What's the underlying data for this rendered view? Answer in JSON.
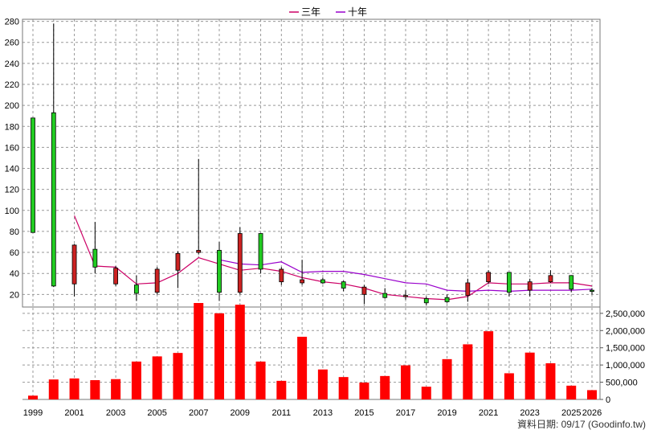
{
  "chart_data": {
    "type": "candlestick-bar",
    "legend": [
      {
        "name": "三年",
        "color": "#cc0066"
      },
      {
        "name": "十年",
        "color": "#9900cc"
      }
    ],
    "years": [
      1999,
      2000,
      2001,
      2002,
      2003,
      2004,
      2005,
      2006,
      2007,
      2008,
      2009,
      2010,
      2011,
      2012,
      2013,
      2014,
      2015,
      2016,
      2017,
      2018,
      2019,
      2020,
      2021,
      2022,
      2023,
      2024,
      2025,
      2026
    ],
    "x_tick_labels": [
      "1999",
      "2001",
      "2003",
      "2005",
      "2007",
      "2009",
      "2011",
      "2013",
      "2015",
      "2017",
      "2019",
      "2021",
      "2023",
      "2025",
      "2026"
    ],
    "price_axis": {
      "min": 8,
      "max": 282,
      "ticks": [
        20,
        40,
        60,
        80,
        100,
        120,
        140,
        160,
        180,
        200,
        220,
        240,
        260,
        280
      ]
    },
    "volume_axis": {
      "min": 0,
      "max": 2800000,
      "ticks": [
        0,
        500000,
        1000000,
        1500000,
        2000000,
        2500000
      ],
      "tick_labels": [
        "0",
        "500,000",
        "1,000,000",
        "1,500,000",
        "2,000,000",
        "2,500,000"
      ]
    },
    "candles": [
      {
        "year": 1999,
        "open": 79,
        "close": 188,
        "high": 188,
        "low": 79
      },
      {
        "year": 2000,
        "open": 28,
        "close": 193,
        "high": 278,
        "low": 27
      },
      {
        "year": 2001,
        "open": 67,
        "close": 30,
        "high": 68,
        "low": 18
      },
      {
        "year": 2002,
        "open": 46,
        "close": 63,
        "high": 89,
        "low": 40
      },
      {
        "year": 2003,
        "open": 45,
        "close": 30,
        "high": 47,
        "low": 28
      },
      {
        "year": 2004,
        "open": 21,
        "close": 29,
        "high": 38,
        "low": 14
      },
      {
        "year": 2005,
        "open": 44,
        "close": 22,
        "high": 46,
        "low": 20
      },
      {
        "year": 2006,
        "open": 59,
        "close": 43,
        "high": 61,
        "low": 26
      },
      {
        "year": 2007,
        "open": 62,
        "close": 60,
        "high": 149,
        "low": 58
      },
      {
        "year": 2008,
        "open": 22,
        "close": 62,
        "high": 70,
        "low": 14
      },
      {
        "year": 2009,
        "open": 78,
        "close": 22,
        "high": 84,
        "low": 20
      },
      {
        "year": 2010,
        "open": 44,
        "close": 78,
        "high": 78,
        "low": 40
      },
      {
        "year": 2011,
        "open": 44,
        "close": 32,
        "high": 46,
        "low": 29
      },
      {
        "year": 2012,
        "open": 34,
        "close": 31,
        "high": 53,
        "low": 29
      },
      {
        "year": 2013,
        "open": 31,
        "close": 34,
        "high": 36,
        "low": 30
      },
      {
        "year": 2014,
        "open": 26,
        "close": 32,
        "high": 33,
        "low": 23
      },
      {
        "year": 2015,
        "open": 27,
        "close": 20,
        "high": 29,
        "low": 11
      },
      {
        "year": 2016,
        "open": 17,
        "close": 21,
        "high": 26,
        "low": 16
      },
      {
        "year": 2017,
        "open": 19,
        "close": 18,
        "high": 24,
        "low": 15
      },
      {
        "year": 2018,
        "open": 12,
        "close": 16,
        "high": 18,
        "low": 10
      },
      {
        "year": 2019,
        "open": 13,
        "close": 17,
        "high": 20,
        "low": 12
      },
      {
        "year": 2020,
        "open": 31,
        "close": 19,
        "high": 35,
        "low": 13
      },
      {
        "year": 2021,
        "open": 41,
        "close": 32,
        "high": 43,
        "low": 30
      },
      {
        "year": 2022,
        "open": 22,
        "close": 41,
        "high": 41,
        "low": 18
      },
      {
        "year": 2023,
        "open": 32,
        "close": 24,
        "high": 35,
        "low": 18
      },
      {
        "year": 2024,
        "open": 38,
        "close": 32,
        "high": 43,
        "low": 31
      },
      {
        "year": 2025,
        "open": 25,
        "close": 38,
        "high": 38,
        "low": 22
      },
      {
        "year": 2026,
        "open": 24,
        "close": 24,
        "high": 26,
        "low": 20
      }
    ],
    "ma_series": [
      {
        "name": "三年",
        "color": "#cc0066",
        "years": [
          2001,
          2002,
          2003,
          2004,
          2005,
          2006,
          2007,
          2008,
          2009,
          2010,
          2011,
          2012,
          2013,
          2014,
          2015,
          2016,
          2017,
          2018,
          2019,
          2020,
          2021,
          2022,
          2023,
          2024,
          2025,
          2026
        ],
        "values": [
          95,
          47,
          46,
          30,
          31,
          40,
          55,
          49,
          43,
          45,
          42,
          36,
          32,
          30,
          26,
          20,
          18,
          16,
          15,
          18,
          31,
          30,
          30,
          31,
          31,
          28
        ]
      },
      {
        "name": "十年",
        "color": "#9900cc",
        "years": [
          2008,
          2009,
          2010,
          2011,
          2012,
          2013,
          2014,
          2015,
          2016,
          2017,
          2018,
          2019,
          2020,
          2021,
          2022,
          2023,
          2024,
          2025,
          2026
        ],
        "values": [
          53,
          49,
          48,
          51,
          41,
          42,
          42,
          39,
          35,
          31,
          30,
          24,
          23,
          24,
          23,
          24,
          24,
          24,
          25
        ]
      }
    ],
    "volume": [
      {
        "year": 1999,
        "value": 110000,
        "color": "#ff0000"
      },
      {
        "year": 2000,
        "value": 580000,
        "color": "#ff0000"
      },
      {
        "year": 2001,
        "value": 610000,
        "color": "#ff0000"
      },
      {
        "year": 2002,
        "value": 560000,
        "color": "#ff0000"
      },
      {
        "year": 2003,
        "value": 590000,
        "color": "#ff0000"
      },
      {
        "year": 2004,
        "value": 1100000,
        "color": "#ff0000"
      },
      {
        "year": 2005,
        "value": 1250000,
        "color": "#ff0000"
      },
      {
        "year": 2006,
        "value": 1350000,
        "color": "#ff0000"
      },
      {
        "year": 2007,
        "value": 2800000,
        "color": "#ff0000"
      },
      {
        "year": 2008,
        "value": 2500000,
        "color": "#ff0000"
      },
      {
        "year": 2009,
        "value": 2750000,
        "color": "#ff0000"
      },
      {
        "year": 2010,
        "value": 1100000,
        "color": "#ff0000"
      },
      {
        "year": 2011,
        "value": 540000,
        "color": "#ff0000"
      },
      {
        "year": 2012,
        "value": 1820000,
        "color": "#ff0000"
      },
      {
        "year": 2013,
        "value": 870000,
        "color": "#ff0000"
      },
      {
        "year": 2014,
        "value": 650000,
        "color": "#ff0000"
      },
      {
        "year": 2015,
        "value": 490000,
        "color": "#ff0000"
      },
      {
        "year": 2016,
        "value": 680000,
        "color": "#ff0000"
      },
      {
        "year": 2017,
        "value": 990000,
        "color": "#ff0000"
      },
      {
        "year": 2018,
        "value": 370000,
        "color": "#ff0000"
      },
      {
        "year": 2019,
        "value": 1170000,
        "color": "#ff0000"
      },
      {
        "year": 2020,
        "value": 1600000,
        "color": "#ff0000"
      },
      {
        "year": 2021,
        "value": 1980000,
        "color": "#ff0000"
      },
      {
        "year": 2022,
        "value": 760000,
        "color": "#ff0000"
      },
      {
        "year": 2023,
        "value": 1360000,
        "color": "#ff0000"
      },
      {
        "year": 2024,
        "value": 1050000,
        "color": "#ff0000"
      },
      {
        "year": 2025,
        "value": 400000,
        "color": "#ff0000"
      },
      {
        "year": 2026,
        "value": 270000,
        "color": "#ff0000"
      }
    ],
    "colors": {
      "up": "#22cc22",
      "down": "#cc2222",
      "volume": "#ff0000",
      "grid": "#999999"
    }
  },
  "footer": "資料日期: 09/17  (Goodinfo.tw)"
}
